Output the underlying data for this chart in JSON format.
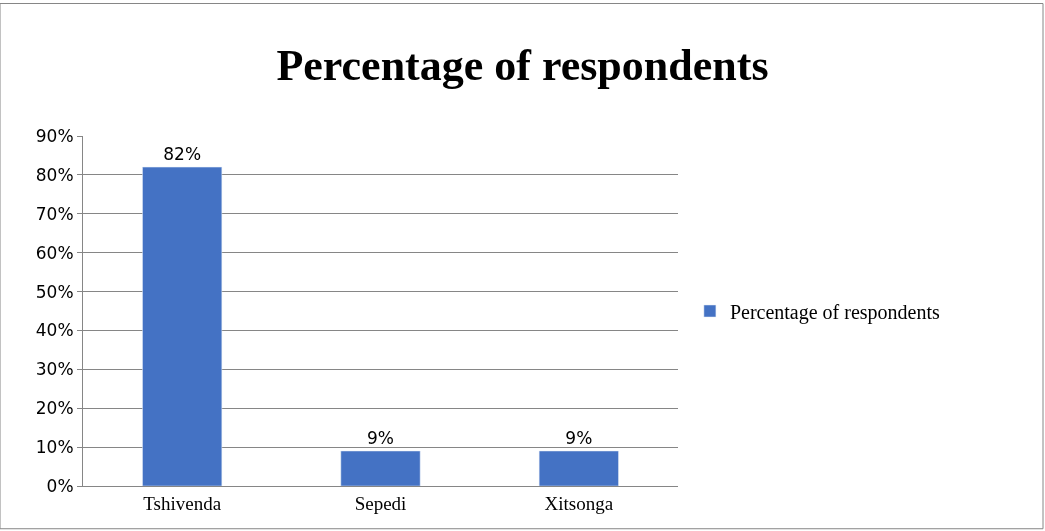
{
  "chart_data": {
    "type": "bar",
    "title": "Percentage of respondents",
    "categories": [
      "Tshivenda",
      "Sepedi",
      "Xitsonga"
    ],
    "series": [
      {
        "name": "Percentage of respondents",
        "color": "#4472c4",
        "values": [
          82,
          9,
          9
        ]
      }
    ],
    "value_labels": [
      "82%",
      "9%",
      "9%"
    ],
    "ylim": [
      0,
      90
    ],
    "yticks": [
      {
        "value": 0,
        "label": "0%"
      },
      {
        "value": 10,
        "label": "10%"
      },
      {
        "value": 20,
        "label": "20%"
      },
      {
        "value": 30,
        "label": "30%"
      },
      {
        "value": 40,
        "label": "40%"
      },
      {
        "value": 50,
        "label": "50%"
      },
      {
        "value": 60,
        "label": "60%"
      },
      {
        "value": 70,
        "label": "70%"
      },
      {
        "value": 80,
        "label": "80%"
      },
      {
        "value": 90,
        "label": "90%"
      }
    ],
    "grid": "y",
    "legend": "right"
  }
}
